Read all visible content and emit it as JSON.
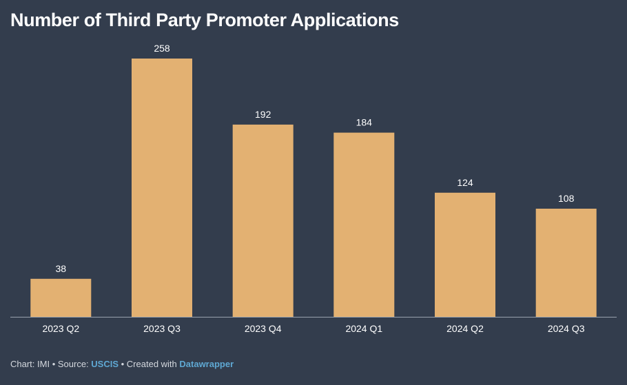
{
  "chart_data": {
    "type": "bar",
    "title": "Number of Third Party Promoter Applications",
    "categories": [
      "2023 Q2",
      "2023 Q3",
      "2023 Q4",
      "2024 Q1",
      "2024 Q2",
      "2024 Q3"
    ],
    "values": [
      38,
      258,
      192,
      184,
      124,
      108
    ],
    "xlabel": "",
    "ylabel": "",
    "ylim": [
      0,
      258
    ],
    "grid": false,
    "legend": "none",
    "bar_color": "#e3b172"
  },
  "footer": {
    "chart_label": "Chart: IMI",
    "sep1": " • ",
    "source_label": "Source: ",
    "source_link": "USCIS",
    "sep2": " • ",
    "created_label": "Created with ",
    "created_link": "Datawrapper"
  },
  "colors": {
    "background": "#333d4d",
    "bar": "#e3b172",
    "link": "#5fa8d3",
    "axis": "#9aa3ae",
    "text": "#ffffff"
  }
}
